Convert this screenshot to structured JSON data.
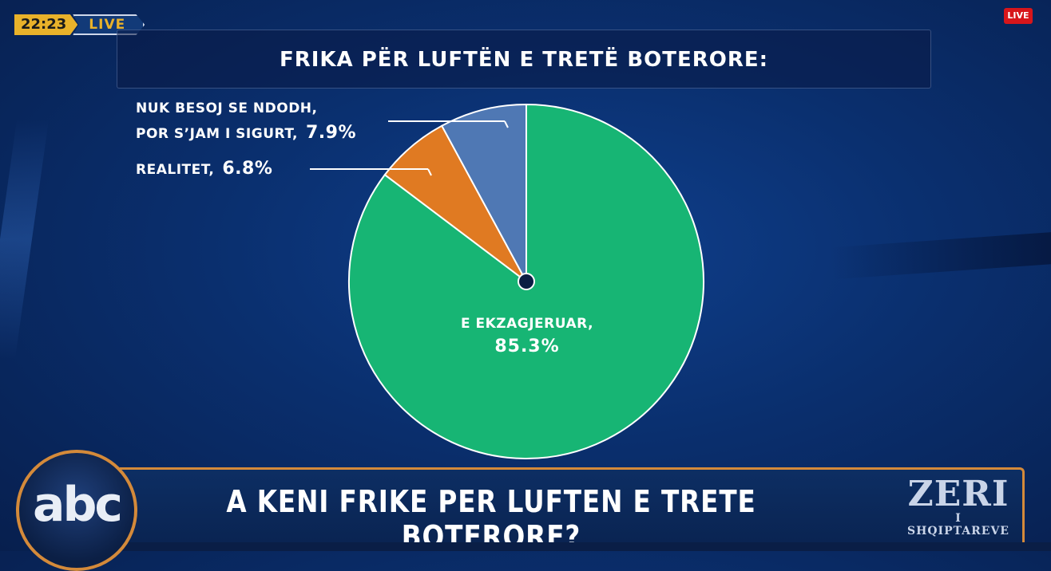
{
  "overlay": {
    "time": "22:23",
    "live_label": "LIVE",
    "live_badge": "LIVE"
  },
  "chart_data": {
    "type": "pie",
    "title": "FRIKA PËR LUFTËN E TRETË BOTERORE:",
    "slices": [
      {
        "label": "E EKZAGJERUAR,",
        "value": 85.3,
        "display": "85.3%",
        "color": "#17b574"
      },
      {
        "label": "REALITET,",
        "value": 6.8,
        "display": "6.8%",
        "color": "#e07a22"
      },
      {
        "label": "NUK BESOJ SE NDODH, POR S'JAM I SIGURT,",
        "value": 7.9,
        "display": "7.9%",
        "color": "#4f78b4"
      }
    ],
    "labels": {
      "nuk_line1": "NUK BESOJ SE NDODH,",
      "nuk_line2": "POR S’JAM I SIGURT,",
      "nuk_pct": "7.9%",
      "realitet": "REALITET,",
      "realitet_pct": "6.8%",
      "ekzag": "E EKZAGJERUAR,",
      "ekzag_pct": "85.3%"
    }
  },
  "lower_third": {
    "question": "A KENI FRIKE PER LUFTEN E TRETE BOTERORE?",
    "logo_left": "abc",
    "show_name_line1": "ZERI",
    "show_name_line2": "I SHQIPTAREVE"
  }
}
